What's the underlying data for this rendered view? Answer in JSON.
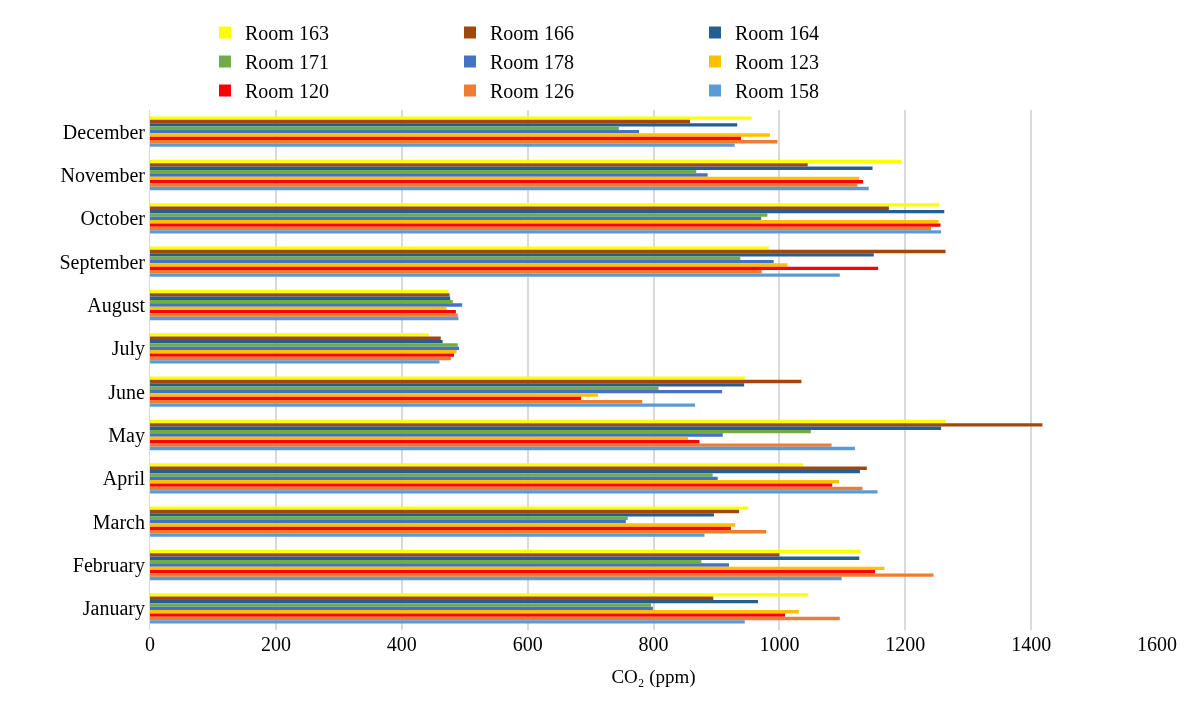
{
  "chart_data": {
    "type": "bar",
    "orientation": "horizontal",
    "xlabel": "CO₂ (ppm)",
    "categories": [
      "December",
      "November",
      "October",
      "September",
      "August",
      "July",
      "June",
      "May",
      "April",
      "March",
      "February",
      "January"
    ],
    "xlim": [
      0,
      1600
    ],
    "xticks": [
      0,
      200,
      400,
      600,
      800,
      1000,
      1200,
      1400,
      1600
    ],
    "grid": "x",
    "legend": "top",
    "series": [
      {
        "name": "Room 163",
        "color": "#ffff00",
        "values": [
          956,
          1194,
          1254,
          983,
          474,
          443,
          945,
          1264,
          1038,
          950,
          1129,
          1046
        ]
      },
      {
        "name": "Room 166",
        "color": "#9e480e",
        "values": [
          858,
          1045,
          1174,
          1264,
          476,
          462,
          1035,
          1418,
          1139,
          936,
          1000,
          895
        ]
      },
      {
        "name": "Room 164",
        "color": "#255e91",
        "values": [
          933,
          1148,
          1262,
          1150,
          477,
          465,
          944,
          1257,
          1128,
          896,
          1127,
          966
        ]
      },
      {
        "name": "Room 171",
        "color": "#70ad47",
        "values": [
          745,
          868,
          981,
          938,
          481,
          489,
          808,
          1050,
          894,
          759,
          876,
          796
        ]
      },
      {
        "name": "Room 178",
        "color": "#4472c4",
        "values": [
          777,
          886,
          971,
          991,
          496,
          491,
          909,
          910,
          902,
          756,
          920,
          799
        ]
      },
      {
        "name": "Room 123",
        "color": "#ffc000",
        "values": [
          985,
          1127,
          1253,
          1013,
          471,
          487,
          712,
          855,
          1095,
          930,
          1167,
          1031
        ]
      },
      {
        "name": "Room 120",
        "color": "#ff0000",
        "values": [
          939,
          1133,
          1256,
          1157,
          486,
          483,
          685,
          873,
          1084,
          923,
          1152,
          1009
        ]
      },
      {
        "name": "Room 126",
        "color": "#ed7d31",
        "values": [
          997,
          1124,
          1241,
          972,
          489,
          478,
          782,
          1083,
          1132,
          979,
          1245,
          1096
        ]
      },
      {
        "name": "Room 158",
        "color": "#5b9bd5",
        "values": [
          929,
          1142,
          1257,
          1096,
          490,
          460,
          866,
          1120,
          1156,
          881,
          1099,
          945
        ]
      }
    ]
  }
}
